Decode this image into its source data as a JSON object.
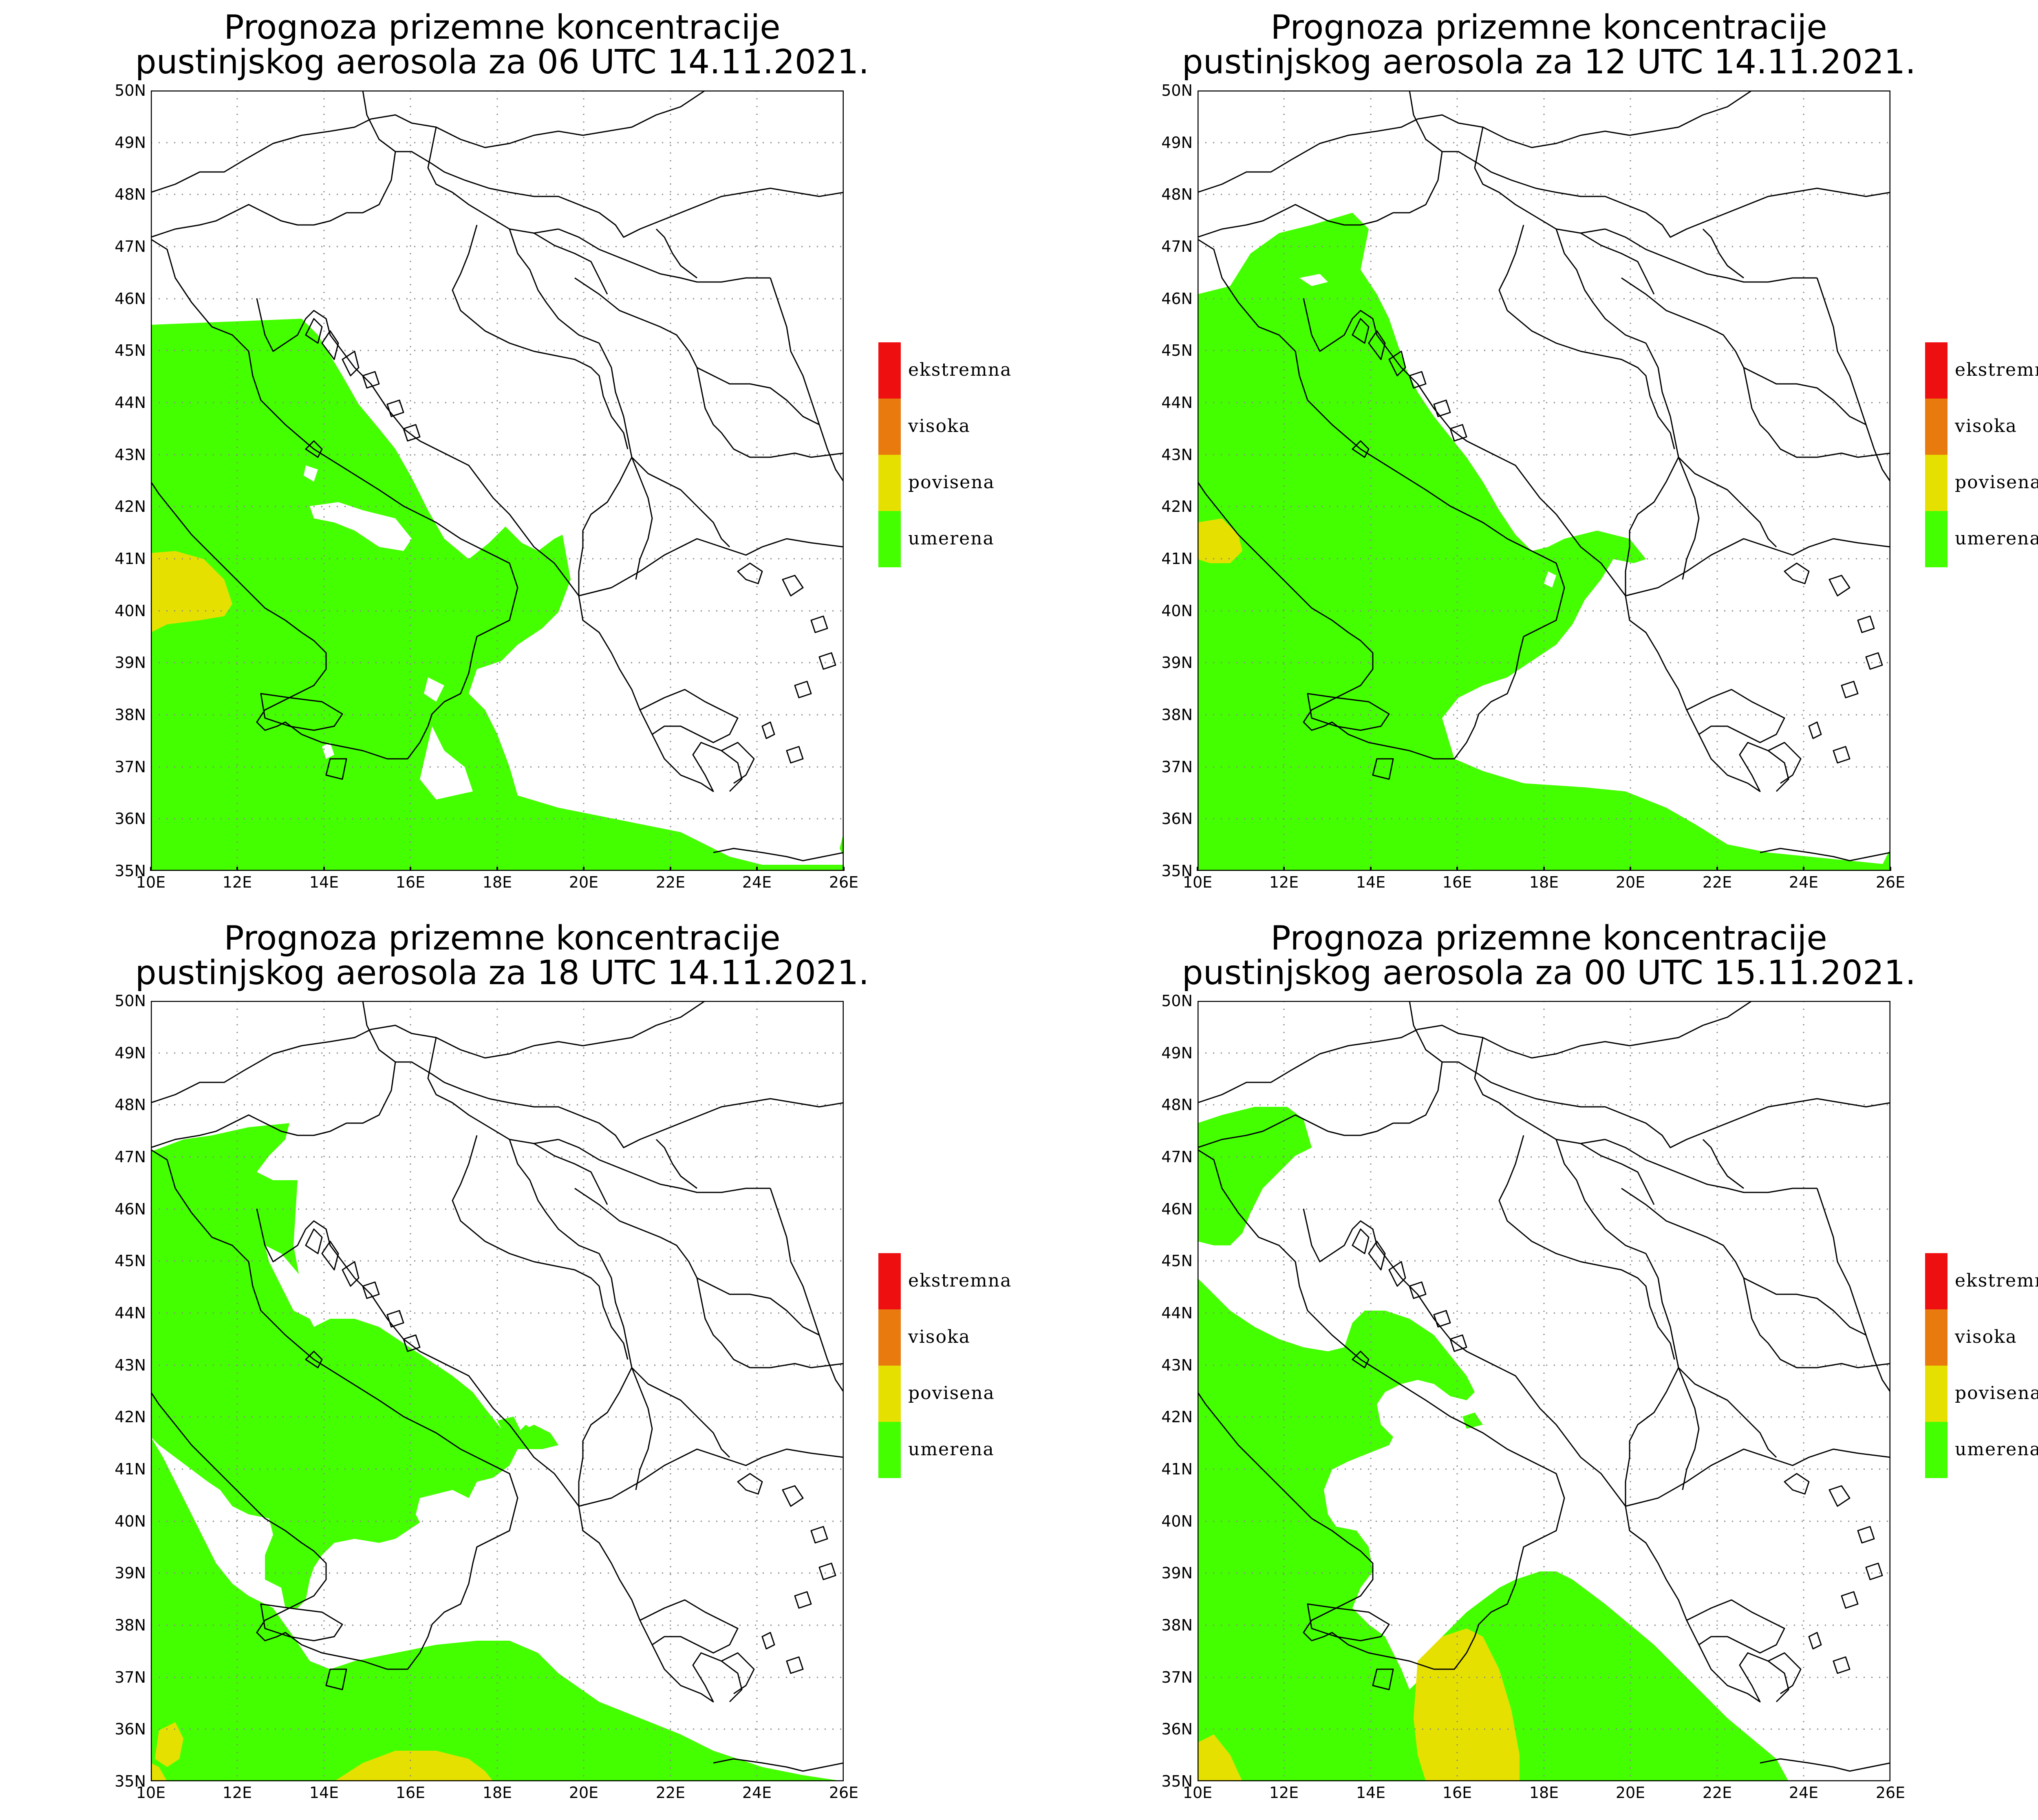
{
  "panels": [
    {
      "title_line1": "Prognoza prizemne koncentracije",
      "title_line2": "pustinjskog aerosola za 06 UTC 14.11.2021."
    },
    {
      "title_line1": "Prognoza prizemne koncentracije",
      "title_line2": "pustinjskog aerosola za 12 UTC 14.11.2021."
    },
    {
      "title_line1": "Prognoza prizemne koncentracije",
      "title_line2": "pustinjskog aerosola za 18 UTC 14.11.2021."
    },
    {
      "title_line1": "Prognoza prizemne koncentracije",
      "title_line2": "pustinjskog aerosola za 00 UTC 15.11.2021."
    }
  ],
  "x_tick_labels": [
    "10E",
    "12E",
    "14E",
    "16E",
    "18E",
    "20E",
    "22E",
    "24E",
    "26E"
  ],
  "y_tick_labels": [
    "35N",
    "36N",
    "37N",
    "38N",
    "39N",
    "40N",
    "41N",
    "42N",
    "43N",
    "44N",
    "45N",
    "46N",
    "47N",
    "48N",
    "49N",
    "50N"
  ],
  "legend": [
    {
      "label": "ekstremna",
      "color": "#ee1010"
    },
    {
      "label": "visoka",
      "color": "#e87a0e"
    },
    {
      "label": "povisena",
      "color": "#e6e000"
    },
    {
      "label": "umerena",
      "color": "#44ff00"
    }
  ],
  "colors": {
    "umerena": "#44ff00",
    "povisena": "#e6e000"
  }
}
